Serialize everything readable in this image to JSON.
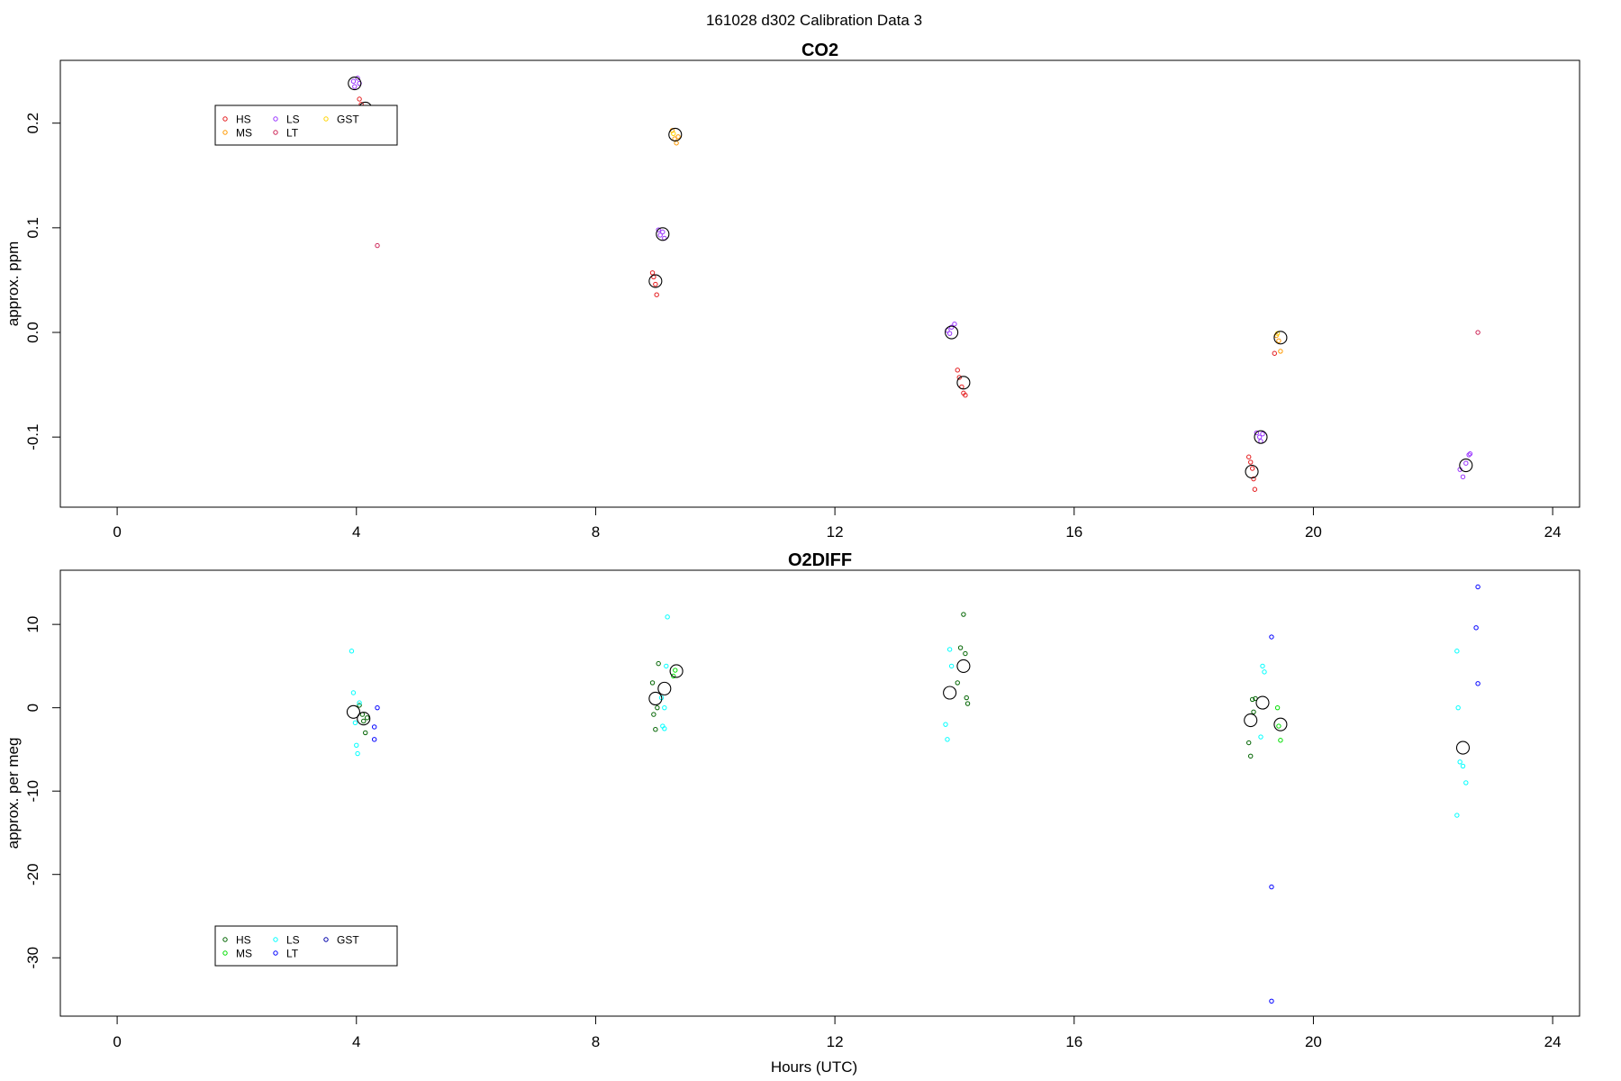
{
  "page_title": "161028   d302   Calibration Data 3",
  "xlabel": "Hours (UTC)",
  "chart_data": [
    {
      "type": "scatter",
      "title": "CO2",
      "ylabel": "approx. ppm",
      "xlim": [
        -0.95,
        24.45
      ],
      "ylim": [
        -0.167,
        0.26
      ],
      "xticks": [
        "0",
        "4",
        "8",
        "12",
        "16",
        "20",
        "24"
      ],
      "yticks": [
        "-0.1",
        "0.0",
        "0.1",
        "0.2"
      ],
      "grid": false,
      "legend_position": "top-left",
      "legend": [
        {
          "label": "HS",
          "color": "#e41a1c"
        },
        {
          "label": "MS",
          "color": "#ff9900"
        },
        {
          "label": "LS",
          "color": "#9933ff"
        },
        {
          "label": "LT",
          "color": "#cc2255"
        },
        {
          "label": "GST",
          "color": "#ffd400"
        }
      ],
      "series": [
        {
          "name": "HS",
          "color": "#e41a1c",
          "points": [
            [
              4.05,
              0.223
            ],
            [
              4.08,
              0.218
            ],
            [
              8.95,
              0.057
            ],
            [
              8.97,
              0.053
            ],
            [
              9.0,
              0.046
            ],
            [
              9.02,
              0.036
            ],
            [
              14.05,
              -0.036
            ],
            [
              14.08,
              -0.043
            ],
            [
              14.12,
              -0.052
            ],
            [
              14.15,
              -0.058
            ],
            [
              14.18,
              -0.06
            ],
            [
              18.92,
              -0.119
            ],
            [
              18.95,
              -0.124
            ],
            [
              18.98,
              -0.13
            ],
            [
              19.0,
              -0.14
            ],
            [
              19.02,
              -0.15
            ],
            [
              19.35,
              -0.02
            ]
          ]
        },
        {
          "name": "MS",
          "color": "#ff9900",
          "points": [
            [
              9.28,
              0.193
            ],
            [
              9.32,
              0.185
            ],
            [
              9.35,
              0.181
            ],
            [
              9.38,
              0.187
            ],
            [
              19.38,
              -0.003
            ],
            [
              19.42,
              -0.008
            ],
            [
              19.45,
              -0.018
            ]
          ]
        },
        {
          "name": "LS",
          "color": "#9933ff",
          "points": [
            [
              3.95,
              0.24
            ],
            [
              3.97,
              0.235
            ],
            [
              4.02,
              0.243
            ],
            [
              4.05,
              0.238
            ],
            [
              9.05,
              0.098
            ],
            [
              9.08,
              0.093
            ],
            [
              9.12,
              0.096
            ],
            [
              9.15,
              0.09
            ],
            [
              13.88,
              0.002
            ],
            [
              13.92,
              -0.001
            ],
            [
              13.95,
              0.005
            ],
            [
              14.0,
              0.008
            ],
            [
              19.05,
              -0.096
            ],
            [
              19.1,
              -0.1
            ],
            [
              19.12,
              -0.104
            ],
            [
              19.15,
              -0.097
            ],
            [
              22.45,
              -0.131
            ],
            [
              22.5,
              -0.138
            ],
            [
              22.55,
              -0.125
            ],
            [
              22.6,
              -0.117
            ],
            [
              22.62,
              -0.116
            ]
          ]
        },
        {
          "name": "LT",
          "color": "#cc2255",
          "points": [
            [
              4.35,
              0.083
            ],
            [
              22.75,
              0.0
            ]
          ]
        },
        {
          "name": "GST",
          "color": "#ffd400",
          "points": [
            [
              9.3,
              0.19
            ],
            [
              19.4,
              -0.001
            ]
          ]
        }
      ],
      "means": [
        [
          3.97,
          0.238
        ],
        [
          4.15,
          0.214
        ],
        [
          9.0,
          0.049
        ],
        [
          9.12,
          0.094
        ],
        [
          9.33,
          0.189
        ],
        [
          13.95,
          0.0
        ],
        [
          14.15,
          -0.048
        ],
        [
          18.97,
          -0.133
        ],
        [
          19.12,
          -0.1
        ],
        [
          19.45,
          -0.005
        ],
        [
          22.55,
          -0.127
        ]
      ]
    },
    {
      "type": "scatter",
      "title": "O2DIFF",
      "ylabel": "approx. per meg",
      "xlim": [
        -0.95,
        24.45
      ],
      "ylim": [
        -37,
        16.5
      ],
      "xticks": [
        "0",
        "4",
        "8",
        "12",
        "16",
        "20",
        "24"
      ],
      "yticks": [
        "-30",
        "-20",
        "-10",
        "0",
        "10"
      ],
      "grid": false,
      "legend_position": "bottom-left",
      "legend": [
        {
          "label": "HS",
          "color": "#006400"
        },
        {
          "label": "MS",
          "color": "#00dd00"
        },
        {
          "label": "LS",
          "color": "#00ffff"
        },
        {
          "label": "LT",
          "color": "#0000ff"
        },
        {
          "label": "GST",
          "color": "#0000aa"
        }
      ],
      "series": [
        {
          "name": "HS",
          "color": "#006400",
          "points": [
            [
              4.05,
              0.3
            ],
            [
              4.1,
              -0.8
            ],
            [
              4.12,
              -1.6
            ],
            [
              4.15,
              -3.0
            ],
            [
              4.18,
              -1.2
            ],
            [
              8.95,
              3.0
            ],
            [
              8.97,
              -0.8
            ],
            [
              9.0,
              -2.6
            ],
            [
              9.03,
              0.0
            ],
            [
              9.05,
              5.3
            ],
            [
              14.05,
              3.0
            ],
            [
              14.1,
              7.2
            ],
            [
              14.15,
              11.2
            ],
            [
              14.18,
              6.5
            ],
            [
              14.2,
              1.2
            ],
            [
              14.22,
              0.5
            ],
            [
              18.92,
              -4.2
            ],
            [
              18.95,
              -5.8
            ],
            [
              18.98,
              1.0
            ],
            [
              19.0,
              -0.5
            ],
            [
              19.03,
              1.1
            ]
          ]
        },
        {
          "name": "MS",
          "color": "#00dd00",
          "points": [
            [
              9.3,
              3.8
            ],
            [
              9.33,
              4.5
            ],
            [
              19.4,
              0.0
            ],
            [
              19.45,
              -3.9
            ],
            [
              19.42,
              -2.2
            ]
          ]
        },
        {
          "name": "LS",
          "color": "#00ffff",
          "points": [
            [
              3.92,
              6.8
            ],
            [
              3.95,
              1.8
            ],
            [
              3.98,
              -1.8
            ],
            [
              4.0,
              -4.5
            ],
            [
              4.02,
              -5.5
            ],
            [
              4.05,
              0.6
            ],
            [
              9.1,
              1.2
            ],
            [
              9.15,
              0.0
            ],
            [
              9.18,
              5.0
            ],
            [
              9.2,
              10.9
            ],
            [
              9.12,
              -2.2
            ],
            [
              9.15,
              -2.5
            ],
            [
              13.85,
              -2.0
            ],
            [
              13.88,
              -3.8
            ],
            [
              13.92,
              7.0
            ],
            [
              13.95,
              5.0
            ],
            [
              19.15,
              5.0
            ],
            [
              19.18,
              4.3
            ],
            [
              19.12,
              -3.5
            ],
            [
              22.4,
              6.8
            ],
            [
              22.42,
              0.0
            ],
            [
              22.45,
              -6.5
            ],
            [
              22.5,
              -7.0
            ],
            [
              22.55,
              -9.0
            ],
            [
              22.4,
              -12.9
            ]
          ]
        },
        {
          "name": "LT",
          "color": "#0000ff",
          "points": [
            [
              4.3,
              -2.3
            ],
            [
              4.3,
              -3.8
            ],
            [
              4.35,
              0.0
            ],
            [
              19.3,
              8.5
            ],
            [
              19.3,
              -21.5
            ],
            [
              19.3,
              -35.2
            ],
            [
              22.75,
              14.5
            ],
            [
              22.72,
              9.6
            ],
            [
              22.75,
              2.9
            ]
          ]
        }
      ],
      "means": [
        [
          3.95,
          -0.5
        ],
        [
          4.12,
          -1.3
        ],
        [
          9.0,
          1.1
        ],
        [
          9.15,
          2.3
        ],
        [
          9.35,
          4.4
        ],
        [
          13.92,
          1.8
        ],
        [
          14.15,
          5.0
        ],
        [
          18.95,
          -1.5
        ],
        [
          19.15,
          0.6
        ],
        [
          19.45,
          -2.0
        ],
        [
          22.5,
          -4.8
        ]
      ]
    }
  ]
}
